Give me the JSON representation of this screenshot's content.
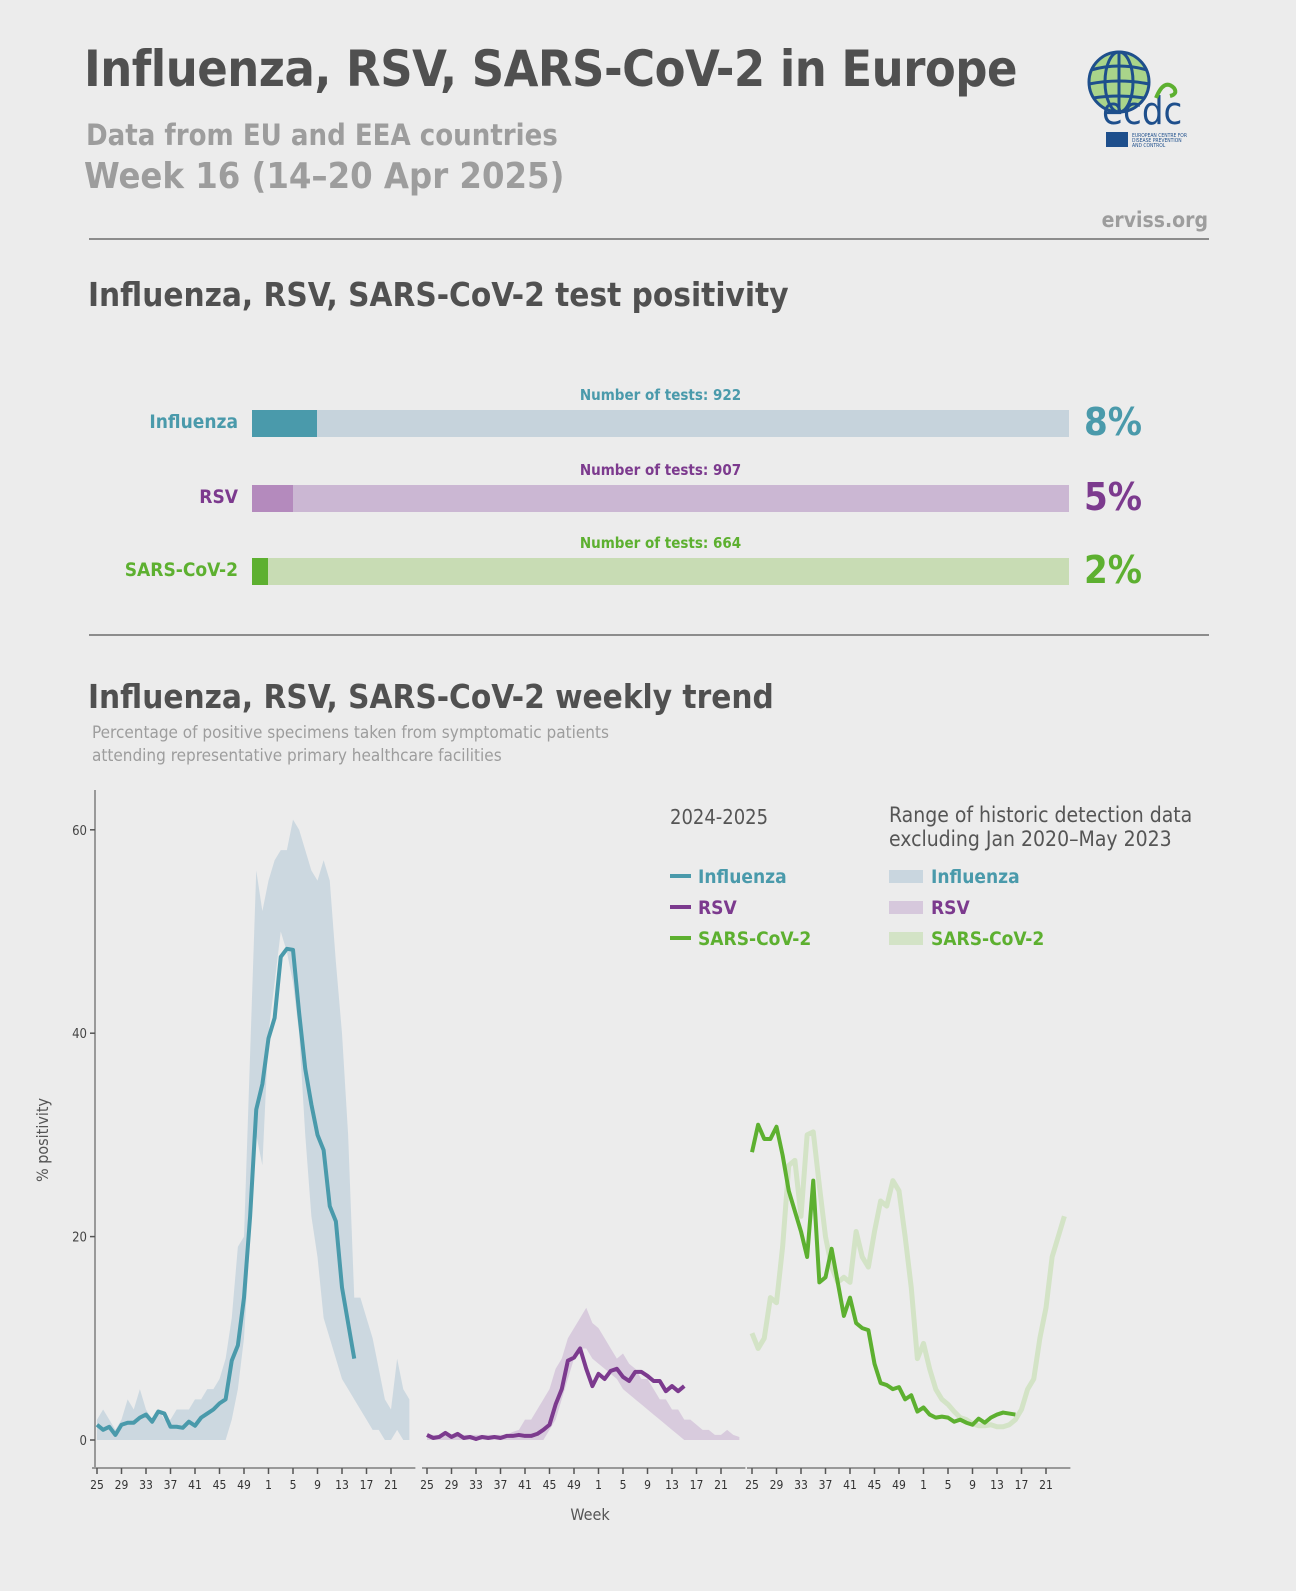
{
  "header": {
    "title": "Influenza, RSV, SARS-CoV-2 in Europe",
    "subtitle": "Data from EU and EEA countries",
    "week": "Week 16 (14–20 Apr 2025)",
    "site": "erviss.org",
    "logo_text": "ecdc",
    "logo_caption": "EUROPEAN CENTRE FOR DISEASE PREVENTION AND CONTROL"
  },
  "positivity": {
    "title": "Influenza, RSV, SARS-CoV-2 test positivity",
    "bars": [
      {
        "label": "Influenza",
        "tests": "Number of tests: 922",
        "percent_label": "8%",
        "percent": 8,
        "color": "#4a9aab",
        "track": "#c6d3dc"
      },
      {
        "label": "RSV",
        "tests": "Number of tests: 907",
        "percent_label": "5%",
        "percent": 5,
        "color": "#7c3a8e",
        "fill": "#b48abd",
        "track": "#cbb7d3"
      },
      {
        "label": "SARS-CoV-2",
        "tests": "Number of tests: 664",
        "percent_label": "2%",
        "percent": 2,
        "color": "#5db030",
        "track": "#c8dcb4"
      }
    ]
  },
  "trend": {
    "title": "Influenza, RSV, SARS-CoV-2 weekly trend",
    "description_line1": "Percentage of positive specimens taken from symptomatic patients",
    "description_line2": "attending representative primary healthcare facilities"
  },
  "chart_data": {
    "type": "line",
    "xlabel": "Week",
    "ylabel": "% positivity",
    "ylim": [
      0,
      65
    ],
    "yticks": [
      0,
      20,
      40,
      60
    ],
    "xticks": [
      "25",
      "29",
      "33",
      "37",
      "41",
      "45",
      "49",
      "1",
      "5",
      "9",
      "13",
      "17",
      "21"
    ],
    "weeks": [
      25,
      26,
      27,
      28,
      29,
      30,
      31,
      32,
      33,
      34,
      35,
      36,
      37,
      38,
      39,
      40,
      41,
      42,
      43,
      44,
      45,
      46,
      47,
      48,
      49,
      50,
      51,
      52,
      1,
      2,
      3,
      4,
      5,
      6,
      7,
      8,
      9,
      10,
      11,
      12,
      13,
      14,
      15,
      16,
      17,
      18,
      19,
      20,
      21,
      22,
      23,
      24
    ],
    "grid": false,
    "legend": {
      "season_title": "2024-2025",
      "range_title_line1": "Range of historic detection data",
      "range_title_line2": "excluding Jan 2020–May 2023",
      "entries": [
        "Influenza",
        "RSV",
        "SARS-CoV-2"
      ],
      "placement": "top-right"
    },
    "panels": [
      {
        "name": "Influenza",
        "color": "#4a9aab",
        "band_color": "#c9d6df",
        "current": [
          1.5,
          1.0,
          1.3,
          0.5,
          1.5,
          1.7,
          1.7,
          2.2,
          2.5,
          1.8,
          2.8,
          2.6,
          1.3,
          1.3,
          1.2,
          1.8,
          1.4,
          2.2,
          2.6,
          3.0,
          3.6,
          4.0,
          7.8,
          9.3,
          14,
          22,
          32.5,
          35,
          39.5,
          41.5,
          47.5,
          48.3,
          48.2,
          42,
          36.5,
          33,
          30,
          28.5,
          23,
          21.5,
          15,
          11.5,
          8
        ],
        "historic_upper": [
          2,
          3,
          2,
          1,
          2,
          4,
          3,
          5,
          3,
          2,
          3,
          2,
          2,
          3,
          3,
          3,
          4,
          4,
          5,
          5,
          6,
          8,
          12,
          19,
          20,
          38,
          56,
          52,
          55,
          57,
          58,
          58,
          61,
          60,
          58,
          56,
          55,
          57,
          55,
          47,
          40,
          30,
          14,
          14,
          12,
          10,
          7,
          4,
          3,
          8,
          5,
          4
        ],
        "historic_lower": [
          0,
          0,
          0,
          0,
          0,
          0,
          0,
          0,
          0,
          0,
          0,
          0,
          0,
          0,
          0,
          0,
          0,
          0,
          0,
          0,
          0,
          0,
          2,
          5,
          10,
          20,
          30,
          27,
          40,
          45,
          50,
          48,
          45,
          40,
          30,
          22,
          18,
          12,
          10,
          8,
          6,
          5,
          4,
          3,
          2,
          1,
          1,
          0,
          0,
          1,
          0,
          0
        ]
      },
      {
        "name": "RSV",
        "color": "#7c3a8e",
        "band_color": "#d6c8dc",
        "current": [
          0.5,
          0.2,
          0.3,
          0.7,
          0.3,
          0.6,
          0.2,
          0.3,
          0.1,
          0.3,
          0.2,
          0.3,
          0.2,
          0.4,
          0.4,
          0.5,
          0.4,
          0.4,
          0.6,
          1.0,
          1.5,
          3.5,
          5.0,
          7.8,
          8.1,
          9.0,
          7.0,
          5.3,
          6.5,
          6.0,
          6.8,
          7.0,
          6.2,
          5.8,
          6.7,
          6.7,
          6.3,
          5.8,
          5.8,
          4.8,
          5.3,
          4.8,
          5.3
        ],
        "historic_upper": [
          0.5,
          0.5,
          0.5,
          0.5,
          0.5,
          0.5,
          0.5,
          0.5,
          0.5,
          0.5,
          0.5,
          0.5,
          0.5,
          0.5,
          0.8,
          1,
          2,
          2,
          3,
          4,
          5,
          7,
          8,
          10,
          11,
          12,
          13,
          11.5,
          11,
          10,
          9,
          8,
          8.5,
          7.5,
          7,
          6,
          6,
          5,
          4,
          4,
          3,
          3,
          2,
          2,
          1.5,
          1,
          1,
          0.5,
          0.5,
          1,
          0.5,
          0.3
        ],
        "historic_lower": [
          0,
          0,
          0,
          0,
          0,
          0,
          0,
          0,
          0,
          0,
          0,
          0,
          0,
          0,
          0,
          0,
          0,
          0,
          0,
          0,
          1,
          2,
          4,
          6,
          8,
          9,
          9,
          8,
          7.5,
          7,
          6.5,
          6,
          5,
          4.5,
          4,
          3.5,
          3,
          2.5,
          2,
          1.5,
          1,
          0.5,
          0,
          0,
          0,
          0,
          0,
          0,
          0,
          0,
          0,
          0
        ]
      },
      {
        "name": "SARS-CoV-2",
        "color": "#5db030",
        "band_color": "#d3e3c6",
        "current": [
          28.3,
          31,
          29.6,
          29.6,
          30.8,
          28,
          24.5,
          22.5,
          20.5,
          18,
          25.5,
          15.5,
          16,
          18.8,
          15.5,
          12.2,
          14,
          11.5,
          11,
          10.8,
          7.5,
          5.6,
          5.4,
          5,
          5.2,
          4,
          4.4,
          2.8,
          3.2,
          2.5,
          2.2,
          2.3,
          2.2,
          1.8,
          2,
          1.7,
          1.5,
          2.1,
          1.7,
          2.2,
          2.5,
          2.7,
          2.6,
          2.5
        ],
        "historic": [
          10.5,
          9,
          10,
          14,
          13.5,
          19,
          27,
          27.5,
          22,
          30,
          30.3,
          25,
          20,
          17,
          15.5,
          16,
          15.5,
          20.5,
          18,
          17,
          20.5,
          23.5,
          23,
          25.5,
          24.5,
          20,
          15,
          8,
          9.5,
          7,
          5,
          4,
          3.5,
          2.8,
          2.2,
          2,
          1.6,
          1.4,
          1.4,
          1.5,
          1.3,
          1.3,
          1.5,
          2,
          3,
          5,
          6,
          10,
          13,
          18,
          20,
          22
        ]
      }
    ]
  }
}
